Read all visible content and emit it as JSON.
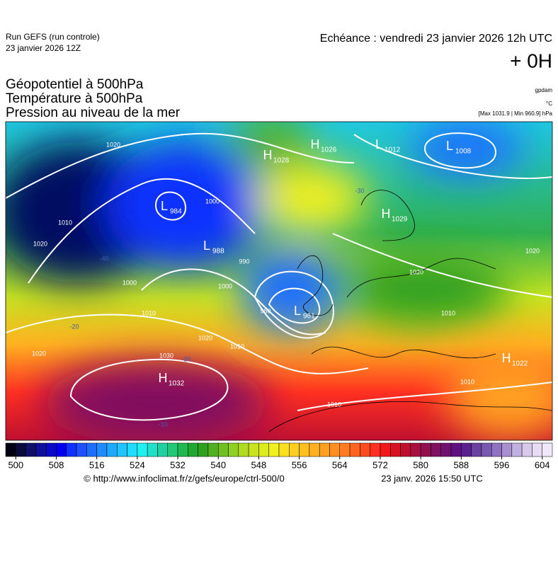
{
  "header": {
    "run": "Run GEFS (run controle)",
    "run_date": "23 janvier 2026 12Z",
    "valid": "Echéance : vendredi 23 janvier 2026 12h UTC",
    "lead": "+ 0H",
    "fields": [
      "Géopotentiel à 500hPa",
      "Température à 500hPa",
      "Pression au niveau de la mer"
    ],
    "unit_geopotential": "gpdam",
    "unit_temperature": "°C",
    "pressure_range": "[Max 1031.9 | Min 960.9] hPa"
  },
  "map": {
    "centers": [
      {
        "letter": "H",
        "value": "1026"
      },
      {
        "letter": "L",
        "value": "1012"
      },
      {
        "letter": "L",
        "value": "1008"
      },
      {
        "letter": "H",
        "value": "1028"
      },
      {
        "letter": "L",
        "value": "984"
      },
      {
        "letter": "L",
        "value": "988"
      },
      {
        "letter": "H",
        "value": "1029"
      },
      {
        "letter": "L",
        "value": "961"
      },
      {
        "letter": "H",
        "value": "1032"
      },
      {
        "letter": "H",
        "value": "1022"
      }
    ],
    "isobar_labels": [
      "1020",
      "1010",
      "1020",
      "1000",
      "1000",
      "990",
      "1000",
      "980",
      "1010",
      "1020",
      "1030",
      "1010",
      "1020",
      "1010",
      "1020",
      "1020",
      "1010",
      "1010"
    ],
    "temperature_labels": [
      "-30",
      "-40",
      "-20",
      "-20",
      "-10"
    ]
  },
  "colorbar": {
    "ticks": [
      500,
      508,
      516,
      524,
      532,
      540,
      548,
      556,
      564,
      572,
      580,
      588,
      596,
      604
    ],
    "colors": [
      "#000010",
      "#0a0a3a",
      "#10106a",
      "#10109a",
      "#0a0ac8",
      "#0000f0",
      "#1030ff",
      "#2050ff",
      "#1e6eff",
      "#208cff",
      "#20a8ff",
      "#20c4ff",
      "#20dcff",
      "#20f0f0",
      "#20e0c8",
      "#20d0a0",
      "#20c878",
      "#20b850",
      "#20a830",
      "#30a020",
      "#50b020",
      "#70c020",
      "#90d020",
      "#b0dc20",
      "#c8e420",
      "#dcec20",
      "#f0f020",
      "#f8e020",
      "#fcd020",
      "#ffc020",
      "#ffb020",
      "#ffa020",
      "#ff9020",
      "#ff7a20",
      "#ff6420",
      "#ff4c20",
      "#ff3020",
      "#f01a1a",
      "#d81420",
      "#c01030",
      "#a81040",
      "#901050",
      "#801060",
      "#701070",
      "#601080",
      "#5a2090",
      "#6a40a0",
      "#7a58b0",
      "#9070c0",
      "#a890d0",
      "#c0b0e0",
      "#d8c8ec",
      "#e8dcf4",
      "#f0e8f8"
    ]
  },
  "footer": {
    "source": "© http://www.infoclimat.fr/z/gefs/europe/ctrl-500/0",
    "generated": "23 janv. 2026 15:50 UTC"
  }
}
